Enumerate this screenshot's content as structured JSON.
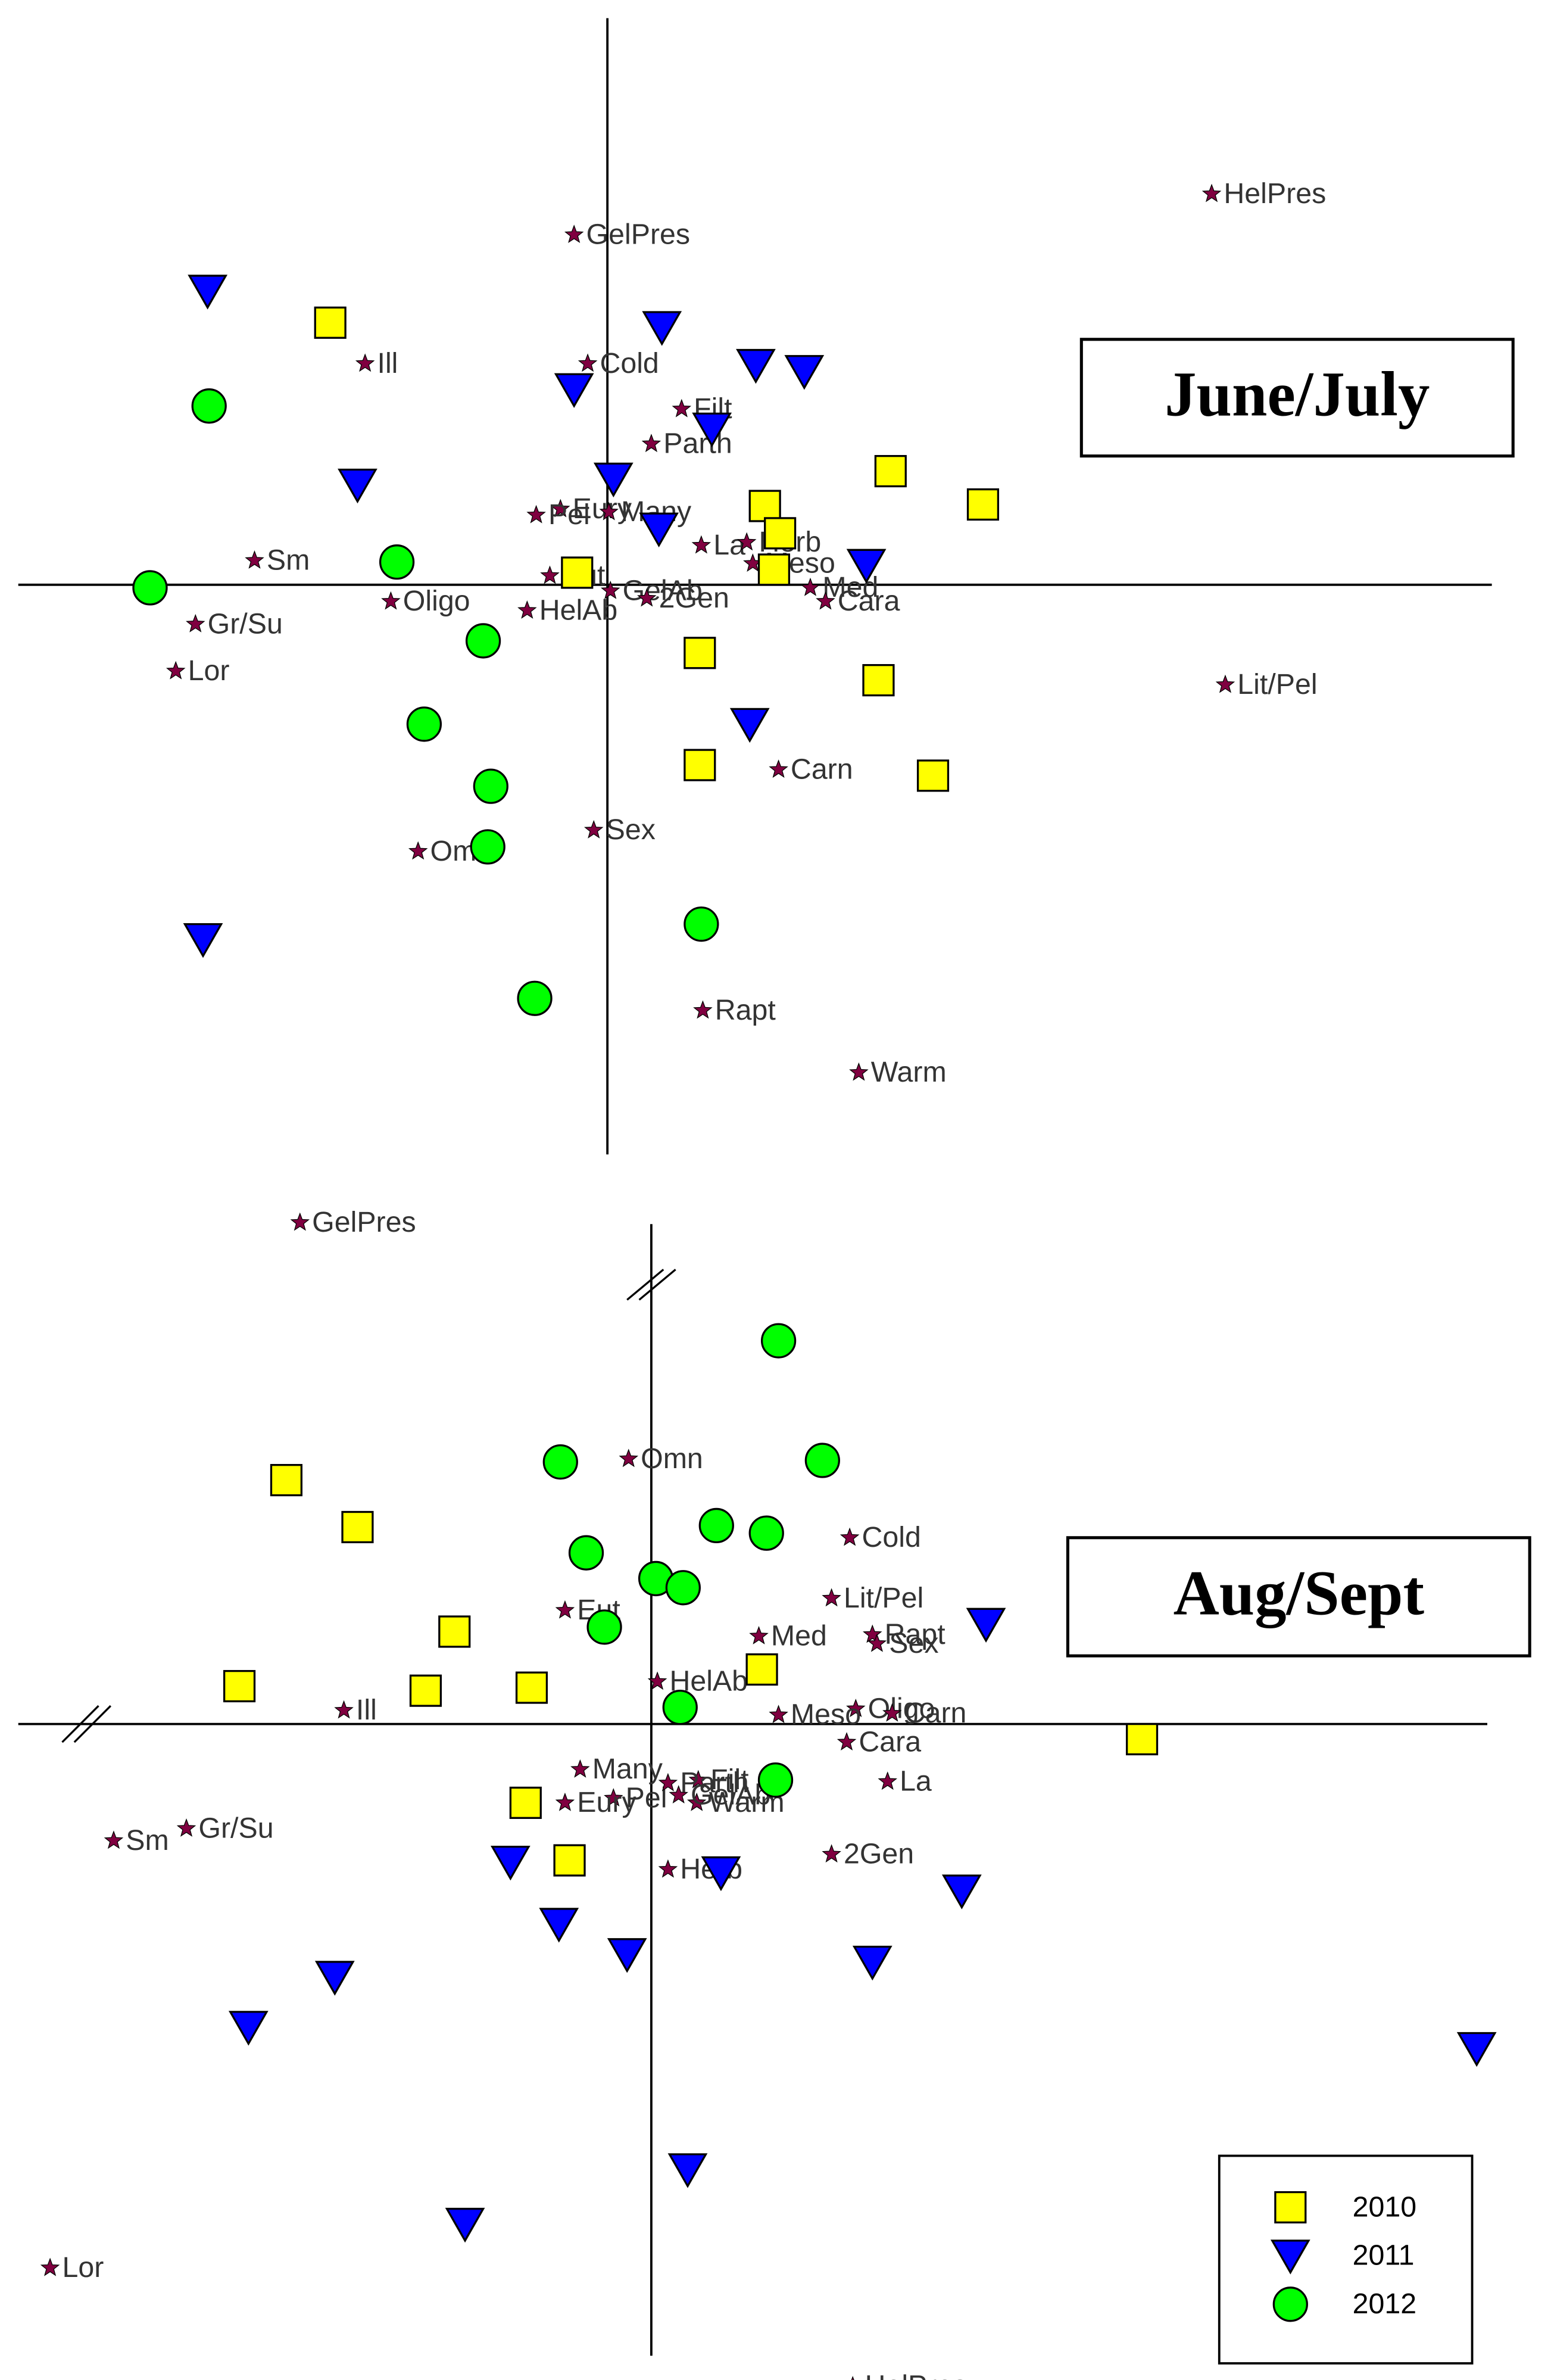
{
  "chart_data": [
    {
      "type": "scatter",
      "title": "June/July",
      "xlim": [
        -3.89,
        5.84
      ],
      "ylim": [
        -3.76,
        3.74
      ],
      "series": [
        {
          "color": "#ffff00",
          "marker": "square",
          "x": [
            -1.83,
            -0.2,
            1.04,
            1.14,
            1.1,
            1.87,
            2.48,
            0.61,
            1.79,
            0.61,
            2.15
          ],
          "y": [
            1.73,
            0.08,
            0.52,
            0.34,
            0.1,
            0.75,
            0.53,
            -0.45,
            -0.63,
            -1.19,
            -1.26
          ]
        },
        {
          "color": "#0000ff",
          "marker": "triangle-down",
          "x": [
            -2.64,
            0.36,
            -0.22,
            0.98,
            1.3,
            0.69,
            -1.65,
            0.04,
            0.34,
            1.71,
            0.94,
            -2.67
          ],
          "y": [
            1.94,
            1.7,
            1.29,
            1.45,
            1.41,
            1.03,
            0.66,
            0.7,
            0.37,
            0.13,
            -0.92,
            -2.34
          ]
        },
        {
          "color": "#00ff00",
          "marker": "circle",
          "x": [
            -2.63,
            -3.02,
            -1.39,
            -0.82,
            -1.21,
            -0.77,
            -0.79,
            0.62,
            -0.48
          ],
          "y": [
            1.18,
            -0.02,
            0.15,
            -0.37,
            -0.92,
            -1.33,
            -1.73,
            -2.24,
            -2.73
          ]
        }
      ],
      "species": {
        "color": "#800040",
        "names": [
          "HelPres",
          "GelPres",
          "Cold",
          "Ill",
          "Filt",
          "Parth",
          "Eury",
          "Pel",
          "Many",
          "La",
          "Herb",
          "Sm",
          "Eut",
          "Meso",
          "Oligo",
          "GelAb",
          "2Gen",
          "HelAb",
          "Med",
          "Cara",
          "Gr/Su",
          "Lor",
          "Lit/Pel",
          "Carn",
          "Sex",
          "Omn",
          "Rapt",
          "Warm"
        ],
        "x": [
          3.99,
          -0.22,
          -0.13,
          -1.6,
          0.49,
          0.29,
          -0.31,
          -0.47,
          0.01,
          0.62,
          0.92,
          -2.33,
          -0.38,
          0.96,
          -1.43,
          0.02,
          0.26,
          -0.53,
          1.34,
          1.44,
          -2.72,
          -2.85,
          4.08,
          1.13,
          -0.09,
          -1.25,
          0.63,
          1.66
        ],
        "y": [
          2.58,
          2.31,
          1.46,
          1.46,
          1.16,
          0.93,
          0.5,
          0.46,
          0.48,
          0.26,
          0.28,
          0.16,
          0.06,
          0.14,
          -0.11,
          -0.04,
          -0.09,
          -0.17,
          -0.02,
          -0.11,
          -0.26,
          -0.57,
          -0.66,
          -1.22,
          -1.62,
          -1.76,
          -2.81,
          -3.22
        ]
      }
    },
    {
      "type": "scatter",
      "title": "Aug/Sept",
      "xlim": [
        -4.18,
        5.52
      ],
      "ylim": [
        -4.17,
        3.3
      ],
      "axis_break": true,
      "legend": "lower right",
      "series": [
        {
          "name": "2010",
          "color": "#ffff00",
          "marker": "square",
          "x": [
            -2.41,
            -1.94,
            -1.3,
            -2.72,
            -1.49,
            -0.79,
            0.73,
            3.24,
            -0.83,
            -0.54
          ],
          "y": [
            1.61,
            1.3,
            0.61,
            0.25,
            0.22,
            0.24,
            0.36,
            -0.1,
            -0.52,
            -0.9
          ]
        },
        {
          "name": "2011",
          "color": "#0000ff",
          "marker": "triangle-down",
          "x": [
            2.21,
            -0.93,
            0.46,
            2.05,
            -0.61,
            -0.16,
            1.46,
            -2.09,
            -2.66,
            5.45,
            0.24,
            -1.23
          ],
          "y": [
            0.66,
            -0.91,
            -0.98,
            -1.1,
            -1.32,
            -1.52,
            -1.57,
            -1.67,
            -2.0,
            -2.14,
            -2.94,
            -3.3
          ]
        },
        {
          "name": "2012",
          "color": "#00ff00",
          "marker": "circle",
          "x": [
            0.84,
            -0.6,
            1.13,
            0.43,
            0.76,
            -0.43,
            0.03,
            0.21,
            -0.31,
            0.19,
            0.82
          ],
          "y": [
            2.53,
            1.73,
            1.74,
            1.31,
            1.26,
            1.13,
            0.96,
            0.9,
            0.64,
            0.11,
            -0.37
          ]
        }
      ],
      "species": {
        "color": "#800040",
        "names": [
          "GelPres",
          "Omn",
          "Cold",
          "Eut",
          "Lit/Pel",
          "Rapt",
          "Sex",
          "Med",
          "HelAb",
          "Ill",
          "Oligo",
          "Carn",
          "Meso",
          "Many",
          "Pel",
          "Eury",
          "Filt",
          "Cara",
          "La",
          "Warm",
          "GelAb",
          "Gr/Su",
          "Sm",
          "Parth",
          "2Gen",
          "Herb",
          "Lor",
          "HelPres"
        ],
        "x": [
          -2.32,
          -0.15,
          1.31,
          -0.57,
          1.19,
          1.46,
          1.49,
          0.71,
          0.04,
          -2.03,
          1.35,
          1.59,
          0.84,
          -0.47,
          -0.25,
          -0.57,
          0.31,
          1.29,
          1.56,
          0.3,
          0.18,
          -3.07,
          -3.55,
          0.11,
          1.19,
          0.11,
          -3.97,
          1.33
        ],
        "y": [
          3.31,
          1.75,
          1.23,
          0.75,
          0.83,
          0.59,
          0.53,
          0.58,
          0.28,
          0.09,
          0.1,
          0.07,
          0.06,
          -0.3,
          -0.49,
          -0.52,
          -0.37,
          -0.12,
          -0.38,
          -0.52,
          -0.47,
          -0.69,
          -0.77,
          -0.39,
          -0.86,
          -0.96,
          -3.59,
          -4.37
        ]
      }
    }
  ]
}
